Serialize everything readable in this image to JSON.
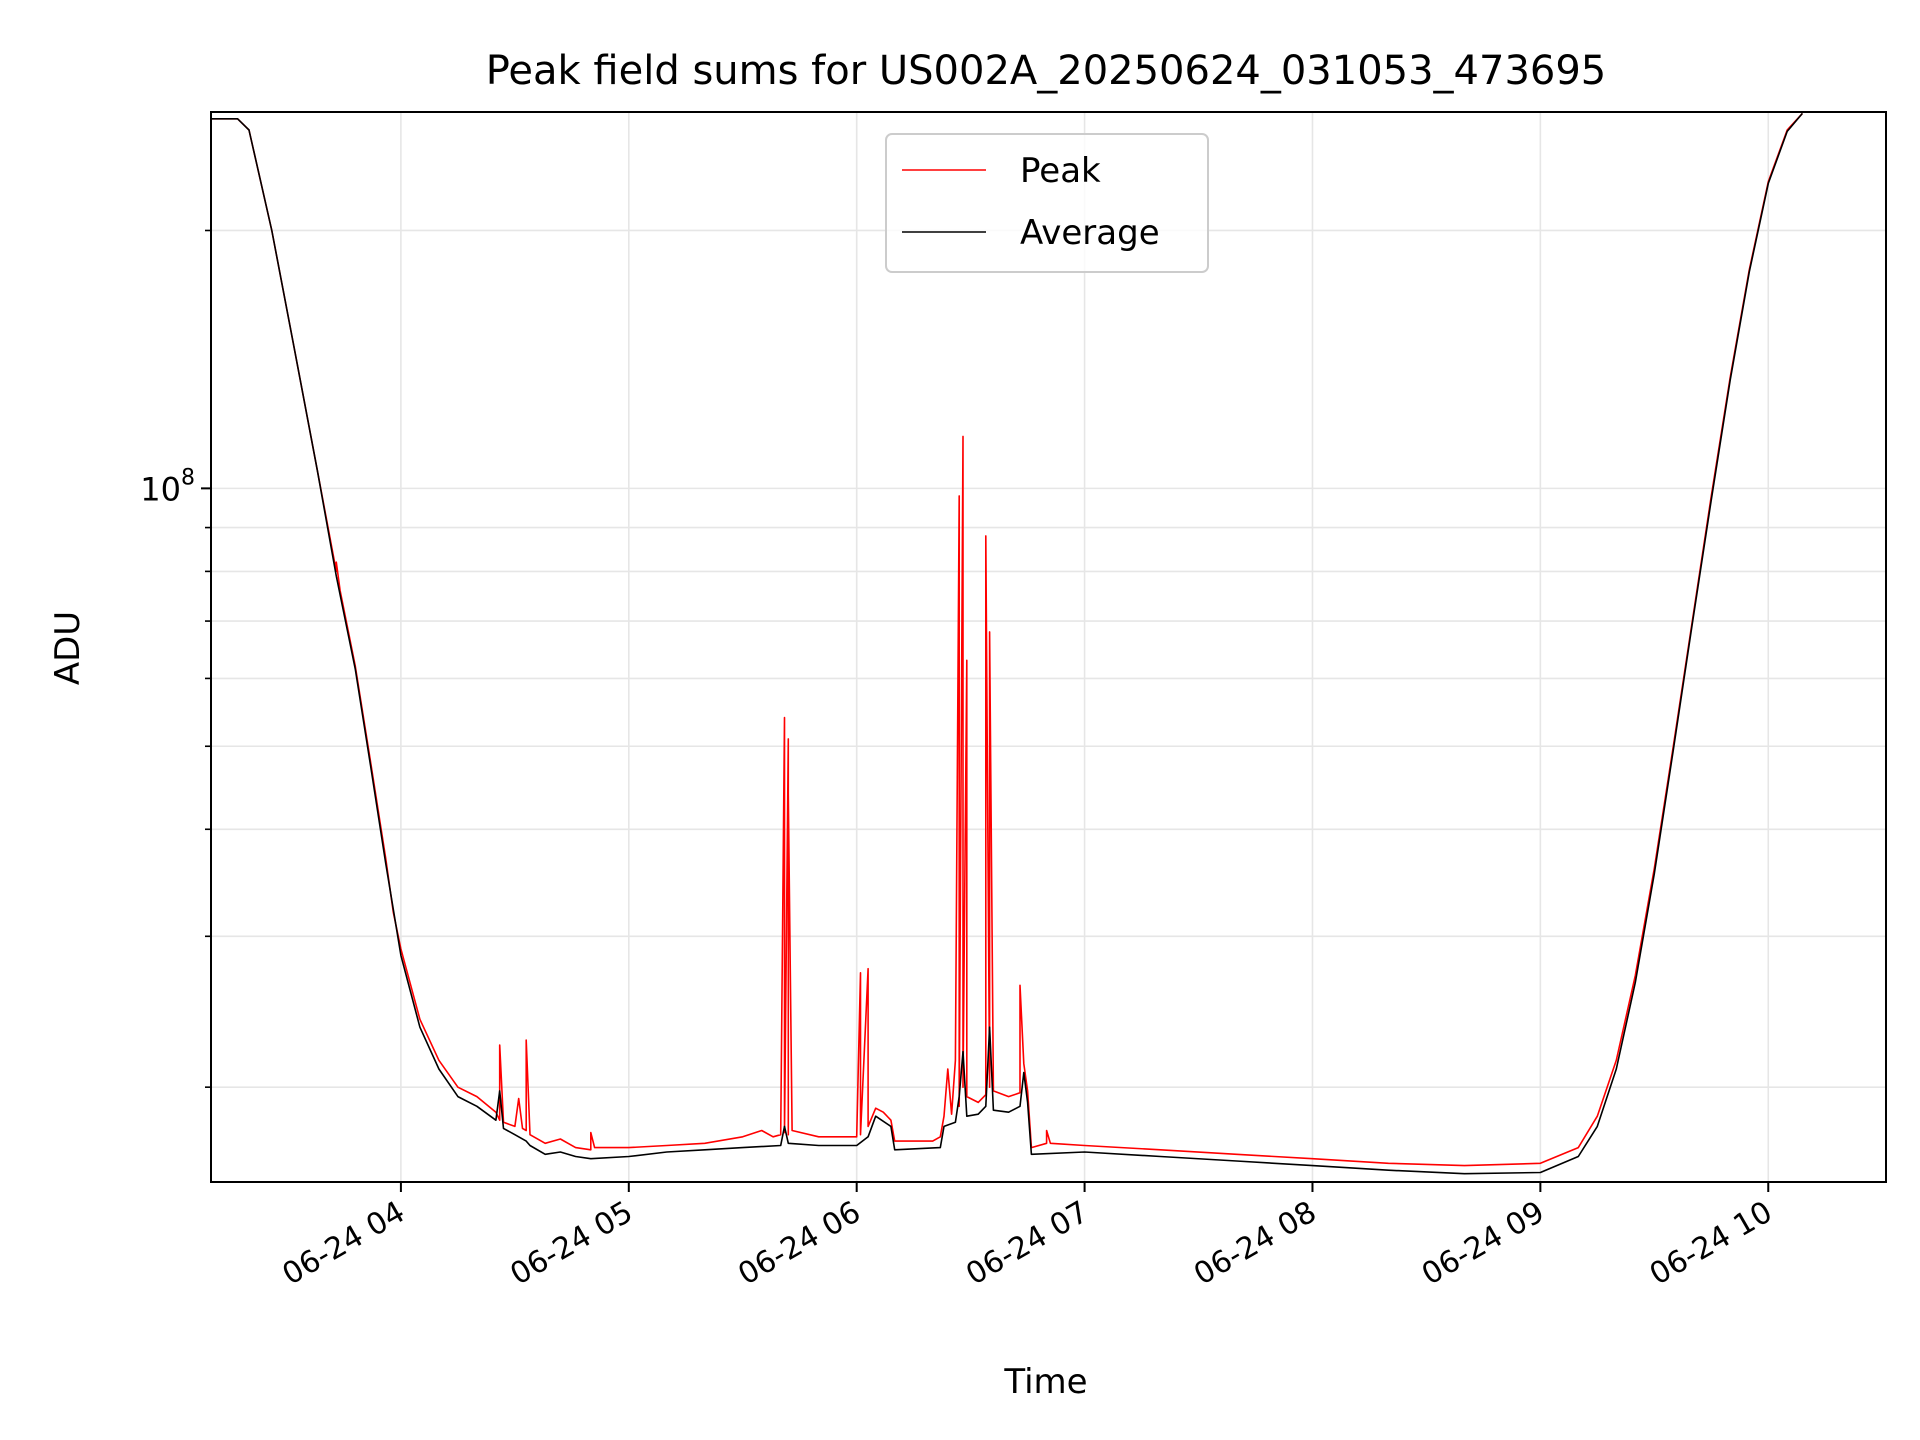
{
  "chart_data": {
    "type": "line",
    "title": "Peak field sums for US002A_20250624_031053_473695",
    "xlabel": "Time",
    "ylabel": "ADU",
    "yscale": "log",
    "grid": true,
    "legend_position": "top-center",
    "x_range": [
      "2025-06-24 03:10",
      "2025-06-24 10:31"
    ],
    "y_range": [
      15500000,
      275000000
    ],
    "x_ticks": [
      {
        "value": "2025-06-24 04:00",
        "label": "06-24 04"
      },
      {
        "value": "2025-06-24 05:00",
        "label": "06-24 05"
      },
      {
        "value": "2025-06-24 06:00",
        "label": "06-24 06"
      },
      {
        "value": "2025-06-24 07:00",
        "label": "06-24 07"
      },
      {
        "value": "2025-06-24 08:00",
        "label": "06-24 08"
      },
      {
        "value": "2025-06-24 09:00",
        "label": "06-24 09"
      },
      {
        "value": "2025-06-24 10:00",
        "label": "06-24 10"
      }
    ],
    "y_major_ticks": [
      {
        "value": 100000000,
        "label_base": "10",
        "label_exp": "8"
      }
    ],
    "y_minor_ticks": [
      20000000,
      30000000,
      40000000,
      50000000,
      60000000,
      70000000,
      80000000,
      90000000,
      200000000
    ],
    "series": [
      {
        "name": "Peak",
        "color": "#ff0000",
        "points": [
          [
            "2025-06-24 03:10",
            270000000
          ],
          [
            "2025-06-24 03:17",
            270000000
          ],
          [
            "2025-06-24 03:20",
            262000000
          ],
          [
            "2025-06-24 03:26",
            200000000
          ],
          [
            "2025-06-24 03:32",
            145000000
          ],
          [
            "2025-06-24 03:38",
            105000000
          ],
          [
            "2025-06-24 03:43",
            80000000
          ],
          [
            "2025-06-24 03:43",
            82000000
          ],
          [
            "2025-06-24 03:44",
            76000000
          ],
          [
            "2025-06-24 03:48",
            62000000
          ],
          [
            "2025-06-24 03:52",
            48000000
          ],
          [
            "2025-06-24 03:56",
            37000000
          ],
          [
            "2025-06-24 03:58",
            32000000
          ],
          [
            "2025-06-24 04:00",
            29000000
          ],
          [
            "2025-06-24 04:05",
            24000000
          ],
          [
            "2025-06-24 04:10",
            21500000
          ],
          [
            "2025-06-24 04:15",
            20000000
          ],
          [
            "2025-06-24 04:20",
            19500000
          ],
          [
            "2025-06-24 04:25",
            18700000
          ],
          [
            "2025-06-24 04:26",
            18300000
          ],
          [
            "2025-06-24 04:26",
            22400000
          ],
          [
            "2025-06-24 04:27",
            18200000
          ],
          [
            "2025-06-24 04:30",
            18000000
          ],
          [
            "2025-06-24 04:31",
            19400000
          ],
          [
            "2025-06-24 04:32",
            17900000
          ],
          [
            "2025-06-24 04:33",
            17800000
          ],
          [
            "2025-06-24 04:33",
            22700000
          ],
          [
            "2025-06-24 04:34",
            17600000
          ],
          [
            "2025-06-24 04:38",
            17200000
          ],
          [
            "2025-06-24 04:42",
            17400000
          ],
          [
            "2025-06-24 04:46",
            17000000
          ],
          [
            "2025-06-24 04:50",
            16900000
          ],
          [
            "2025-06-24 04:50",
            17700000
          ],
          [
            "2025-06-24 04:51",
            17000000
          ],
          [
            "2025-06-24 05:00",
            17000000
          ],
          [
            "2025-06-24 05:10",
            17100000
          ],
          [
            "2025-06-24 05:20",
            17200000
          ],
          [
            "2025-06-24 05:30",
            17500000
          ],
          [
            "2025-06-24 05:35",
            17800000
          ],
          [
            "2025-06-24 05:38",
            17500000
          ],
          [
            "2025-06-24 05:40",
            17600000
          ],
          [
            "2025-06-24 05:41",
            54000000
          ],
          [
            "2025-06-24 05:41",
            17700000
          ],
          [
            "2025-06-24 05:42",
            51000000
          ],
          [
            "2025-06-24 05:42",
            17600000
          ],
          [
            "2025-06-24 05:42",
            44000000
          ],
          [
            "2025-06-24 05:43",
            17800000
          ],
          [
            "2025-06-24 05:50",
            17500000
          ],
          [
            "2025-06-24 06:00",
            17500000
          ],
          [
            "2025-06-24 06:01",
            27200000
          ],
          [
            "2025-06-24 06:01",
            17600000
          ],
          [
            "2025-06-24 06:03",
            27500000
          ],
          [
            "2025-06-24 06:03",
            18000000
          ],
          [
            "2025-06-24 06:05",
            18900000
          ],
          [
            "2025-06-24 06:07",
            18700000
          ],
          [
            "2025-06-24 06:09",
            18300000
          ],
          [
            "2025-06-24 06:10",
            17300000
          ],
          [
            "2025-06-24 06:20",
            17300000
          ],
          [
            "2025-06-24 06:22",
            17500000
          ],
          [
            "2025-06-24 06:23",
            18500000
          ],
          [
            "2025-06-24 06:24",
            21000000
          ],
          [
            "2025-06-24 06:25",
            18600000
          ],
          [
            "2025-06-24 06:26",
            21500000
          ],
          [
            "2025-06-24 06:27",
            98000000
          ],
          [
            "2025-06-24 06:27",
            19000000
          ],
          [
            "2025-06-24 06:28",
            115000000
          ],
          [
            "2025-06-24 06:28",
            20000000
          ],
          [
            "2025-06-24 06:29",
            63000000
          ],
          [
            "2025-06-24 06:29",
            19500000
          ],
          [
            "2025-06-24 06:32",
            19200000
          ],
          [
            "2025-06-24 06:34",
            19600000
          ],
          [
            "2025-06-24 06:34",
            88000000
          ],
          [
            "2025-06-24 06:35",
            20000000
          ],
          [
            "2025-06-24 06:35",
            68000000
          ],
          [
            "2025-06-24 06:36",
            19800000
          ],
          [
            "2025-06-24 06:40",
            19500000
          ],
          [
            "2025-06-24 06:43",
            19700000
          ],
          [
            "2025-06-24 06:43",
            26300000
          ],
          [
            "2025-06-24 06:44",
            21300000
          ],
          [
            "2025-06-24 06:45",
            19800000
          ],
          [
            "2025-06-24 06:46",
            17000000
          ],
          [
            "2025-06-24 06:50",
            17200000
          ],
          [
            "2025-06-24 06:50",
            17800000
          ],
          [
            "2025-06-24 06:51",
            17200000
          ],
          [
            "2025-06-24 07:00",
            17100000
          ],
          [
            "2025-06-24 07:20",
            16900000
          ],
          [
            "2025-06-24 07:40",
            16700000
          ],
          [
            "2025-06-24 08:00",
            16500000
          ],
          [
            "2025-06-24 08:20",
            16300000
          ],
          [
            "2025-06-24 08:40",
            16200000
          ],
          [
            "2025-06-24 09:00",
            16300000
          ],
          [
            "2025-06-24 09:10",
            17000000
          ],
          [
            "2025-06-24 09:15",
            18500000
          ],
          [
            "2025-06-24 09:20",
            21500000
          ],
          [
            "2025-06-24 09:25",
            27000000
          ],
          [
            "2025-06-24 09:30",
            36000000
          ],
          [
            "2025-06-24 09:35",
            50000000
          ],
          [
            "2025-06-24 09:40",
            70000000
          ],
          [
            "2025-06-24 09:45",
            98000000
          ],
          [
            "2025-06-24 09:50",
            135000000
          ],
          [
            "2025-06-24 09:55",
            180000000
          ],
          [
            "2025-06-24 10:00",
            228000000
          ],
          [
            "2025-06-24 10:05",
            262000000
          ],
          [
            "2025-06-24 10:09",
            274000000
          ]
        ]
      },
      {
        "name": "Average",
        "color": "#000000",
        "points": [
          [
            "2025-06-24 03:10",
            270000000
          ],
          [
            "2025-06-24 03:17",
            270000000
          ],
          [
            "2025-06-24 03:20",
            262000000
          ],
          [
            "2025-06-24 03:26",
            200000000
          ],
          [
            "2025-06-24 03:32",
            145000000
          ],
          [
            "2025-06-24 03:38",
            105000000
          ],
          [
            "2025-06-24 03:43",
            79000000
          ],
          [
            "2025-06-24 03:48",
            61500000
          ],
          [
            "2025-06-24 03:52",
            47500000
          ],
          [
            "2025-06-24 03:56",
            36500000
          ],
          [
            "2025-06-24 04:00",
            28500000
          ],
          [
            "2025-06-24 04:05",
            23500000
          ],
          [
            "2025-06-24 04:10",
            21000000
          ],
          [
            "2025-06-24 04:15",
            19500000
          ],
          [
            "2025-06-24 04:20",
            19000000
          ],
          [
            "2025-06-24 04:25",
            18300000
          ],
          [
            "2025-06-24 04:26",
            19800000
          ],
          [
            "2025-06-24 04:27",
            17900000
          ],
          [
            "2025-06-24 04:30",
            17600000
          ],
          [
            "2025-06-24 04:33",
            17300000
          ],
          [
            "2025-06-24 04:34",
            17100000
          ],
          [
            "2025-06-24 04:38",
            16700000
          ],
          [
            "2025-06-24 04:42",
            16800000
          ],
          [
            "2025-06-24 04:46",
            16600000
          ],
          [
            "2025-06-24 04:50",
            16500000
          ],
          [
            "2025-06-24 05:00",
            16600000
          ],
          [
            "2025-06-24 05:10",
            16800000
          ],
          [
            "2025-06-24 05:20",
            16900000
          ],
          [
            "2025-06-24 05:30",
            17000000
          ],
          [
            "2025-06-24 05:40",
            17100000
          ],
          [
            "2025-06-24 05:41",
            18000000
          ],
          [
            "2025-06-24 05:42",
            17200000
          ],
          [
            "2025-06-24 05:50",
            17100000
          ],
          [
            "2025-06-24 06:00",
            17100000
          ],
          [
            "2025-06-24 06:03",
            17500000
          ],
          [
            "2025-06-24 06:05",
            18500000
          ],
          [
            "2025-06-24 06:09",
            18000000
          ],
          [
            "2025-06-24 06:10",
            16900000
          ],
          [
            "2025-06-24 06:22",
            17000000
          ],
          [
            "2025-06-24 06:23",
            18000000
          ],
          [
            "2025-06-24 06:26",
            18200000
          ],
          [
            "2025-06-24 06:27",
            19500000
          ],
          [
            "2025-06-24 06:28",
            22000000
          ],
          [
            "2025-06-24 06:29",
            18500000
          ],
          [
            "2025-06-24 06:32",
            18600000
          ],
          [
            "2025-06-24 06:34",
            19000000
          ],
          [
            "2025-06-24 06:35",
            23500000
          ],
          [
            "2025-06-24 06:36",
            18800000
          ],
          [
            "2025-06-24 06:40",
            18700000
          ],
          [
            "2025-06-24 06:43",
            19000000
          ],
          [
            "2025-06-24 06:44",
            20800000
          ],
          [
            "2025-06-24 06:45",
            19200000
          ],
          [
            "2025-06-24 06:46",
            16700000
          ],
          [
            "2025-06-24 07:00",
            16800000
          ],
          [
            "2025-06-24 07:20",
            16600000
          ],
          [
            "2025-06-24 07:40",
            16400000
          ],
          [
            "2025-06-24 08:00",
            16200000
          ],
          [
            "2025-06-24 08:20",
            16000000
          ],
          [
            "2025-06-24 08:40",
            15850000
          ],
          [
            "2025-06-24 09:00",
            15900000
          ],
          [
            "2025-06-24 09:10",
            16600000
          ],
          [
            "2025-06-24 09:15",
            18000000
          ],
          [
            "2025-06-24 09:20",
            21000000
          ],
          [
            "2025-06-24 09:25",
            26500000
          ],
          [
            "2025-06-24 09:30",
            35500000
          ],
          [
            "2025-06-24 09:35",
            49500000
          ],
          [
            "2025-06-24 09:40",
            69500000
          ],
          [
            "2025-06-24 09:45",
            97000000
          ],
          [
            "2025-06-24 09:50",
            134000000
          ],
          [
            "2025-06-24 09:55",
            179000000
          ],
          [
            "2025-06-24 10:00",
            227000000
          ],
          [
            "2025-06-24 10:05",
            261000000
          ],
          [
            "2025-06-24 10:09",
            274000000
          ]
        ]
      }
    ]
  }
}
